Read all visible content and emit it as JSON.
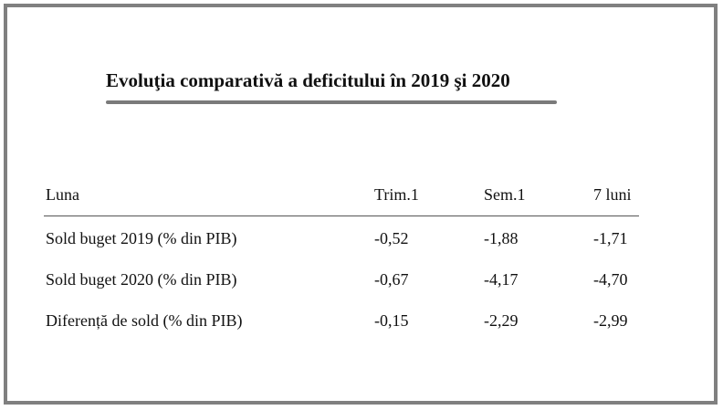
{
  "title": "Evoluţia comparativă a deficitului în 2019 şi 2020",
  "table": {
    "headers": [
      "Luna",
      "Trim.1",
      "Sem.1",
      "7 luni"
    ],
    "rows": [
      [
        "Sold buget 2019 (% din PIB)",
        "-0,52",
        "-1,88",
        "-1,71"
      ],
      [
        "Sold buget 2020 (% din PIB)",
        "-0,67",
        "-4,17",
        "-4,70"
      ],
      [
        "Diferență de sold (% din PIB)",
        "-0,15",
        "-2,29",
        "-2,99"
      ]
    ]
  }
}
